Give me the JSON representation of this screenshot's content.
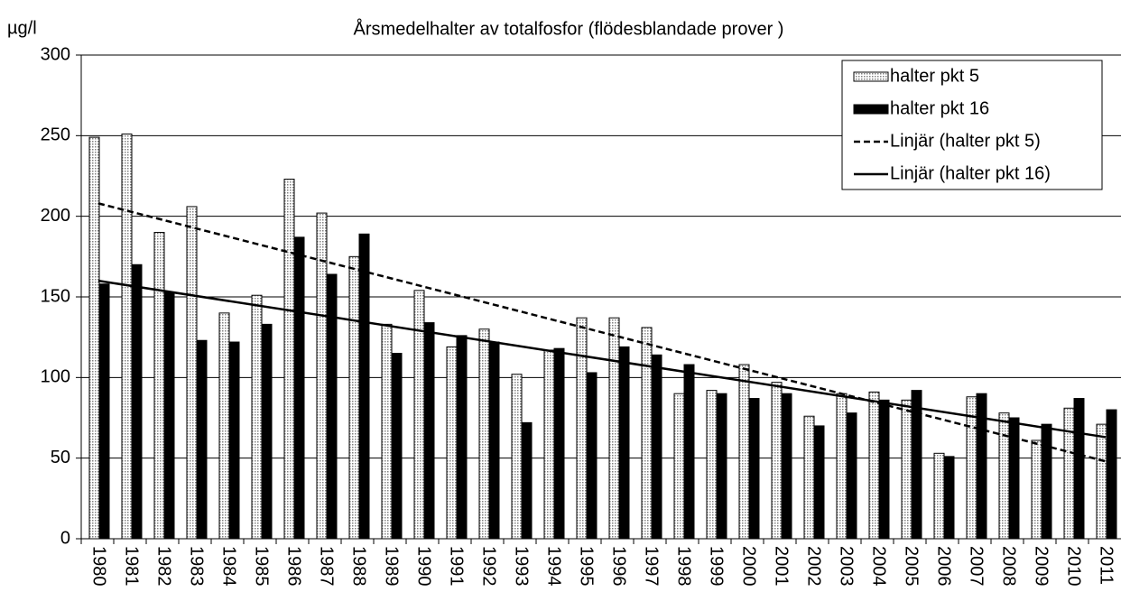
{
  "chart_data": {
    "type": "bar",
    "title": "Årsmedelhalter av totalfosfor (flödesblandade prover )",
    "y_label": "µg/l",
    "categories": [
      "1980",
      "1981",
      "1982",
      "1983",
      "1984",
      "1985",
      "1986",
      "1987",
      "1988",
      "1989",
      "1990",
      "1991",
      "1992",
      "1993",
      "1994",
      "1995",
      "1996",
      "1997",
      "1998",
      "1999",
      "2000",
      "2001",
      "2002",
      "2003",
      "2004",
      "2005",
      "2006",
      "2007",
      "2008",
      "2009",
      "2010",
      "2011"
    ],
    "series": [
      {
        "name": "halter pkt 5",
        "color": "#bfbfbf",
        "values": [
          249,
          251,
          190,
          206,
          140,
          151,
          223,
          202,
          175,
          133,
          154,
          119,
          130,
          102,
          117,
          137,
          137,
          131,
          90,
          92,
          108,
          97,
          76,
          90,
          91,
          86,
          53,
          88,
          78,
          61,
          81,
          71
        ]
      },
      {
        "name": "halter pkt 16",
        "color": "#000000",
        "values": [
          158,
          170,
          153,
          123,
          122,
          133,
          187,
          164,
          189,
          115,
          134,
          126,
          122,
          72,
          118,
          103,
          119,
          114,
          108,
          90,
          87,
          90,
          70,
          78,
          86,
          92,
          51,
          90,
          75,
          71,
          87,
          80
        ]
      }
    ],
    "trendlines": [
      {
        "name": "Linjär (halter pkt 5)",
        "dashed": true,
        "x": [
          "1980",
          "2011"
        ],
        "values": [
          208,
          48
        ]
      },
      {
        "name": "Linjär (halter pkt 16)",
        "dashed": false,
        "x": [
          "1980",
          "2011"
        ],
        "values": [
          160,
          63
        ]
      }
    ],
    "ylim": [
      0,
      300
    ],
    "yticks": [
      0,
      50,
      100,
      150,
      200,
      250,
      300
    ],
    "grid": true,
    "legend": "top-right"
  }
}
